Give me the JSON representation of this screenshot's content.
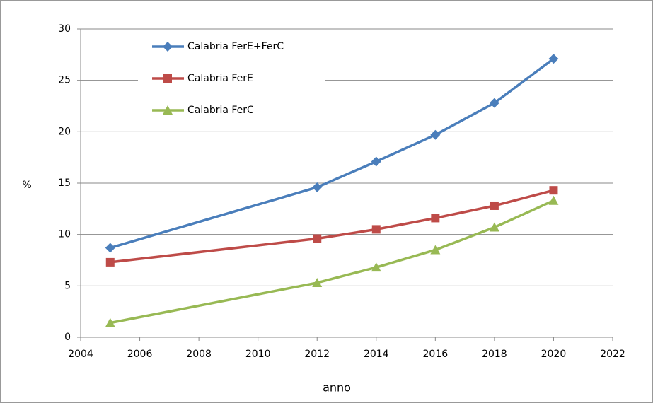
{
  "chart_data": {
    "type": "line",
    "x_label": "anno",
    "y_label": "%",
    "x": [
      2005,
      2012,
      2014,
      2016,
      2018,
      2020
    ],
    "series": [
      {
        "name": "Calabria FerE+FerC",
        "color": "#4a7ebb",
        "marker": "diamond",
        "values": [
          8.7,
          14.6,
          17.1,
          19.7,
          22.8,
          27.1
        ]
      },
      {
        "name": "Calabria FerE",
        "color": "#be4b48",
        "marker": "square",
        "values": [
          7.3,
          9.6,
          10.5,
          11.6,
          12.8,
          14.3
        ]
      },
      {
        "name": "Calabria FerC",
        "color": "#98b954",
        "marker": "triangle",
        "values": [
          1.4,
          5.3,
          6.8,
          8.5,
          10.7,
          13.3
        ]
      }
    ],
    "xlim": [
      2004,
      2022
    ],
    "xticks": [
      2004,
      2006,
      2008,
      2010,
      2012,
      2014,
      2016,
      2018,
      2020,
      2022
    ],
    "ylim": [
      0,
      30
    ],
    "yticks": [
      0,
      5,
      10,
      15,
      20,
      25,
      30
    ],
    "grid": true,
    "legend": "upper left"
  }
}
